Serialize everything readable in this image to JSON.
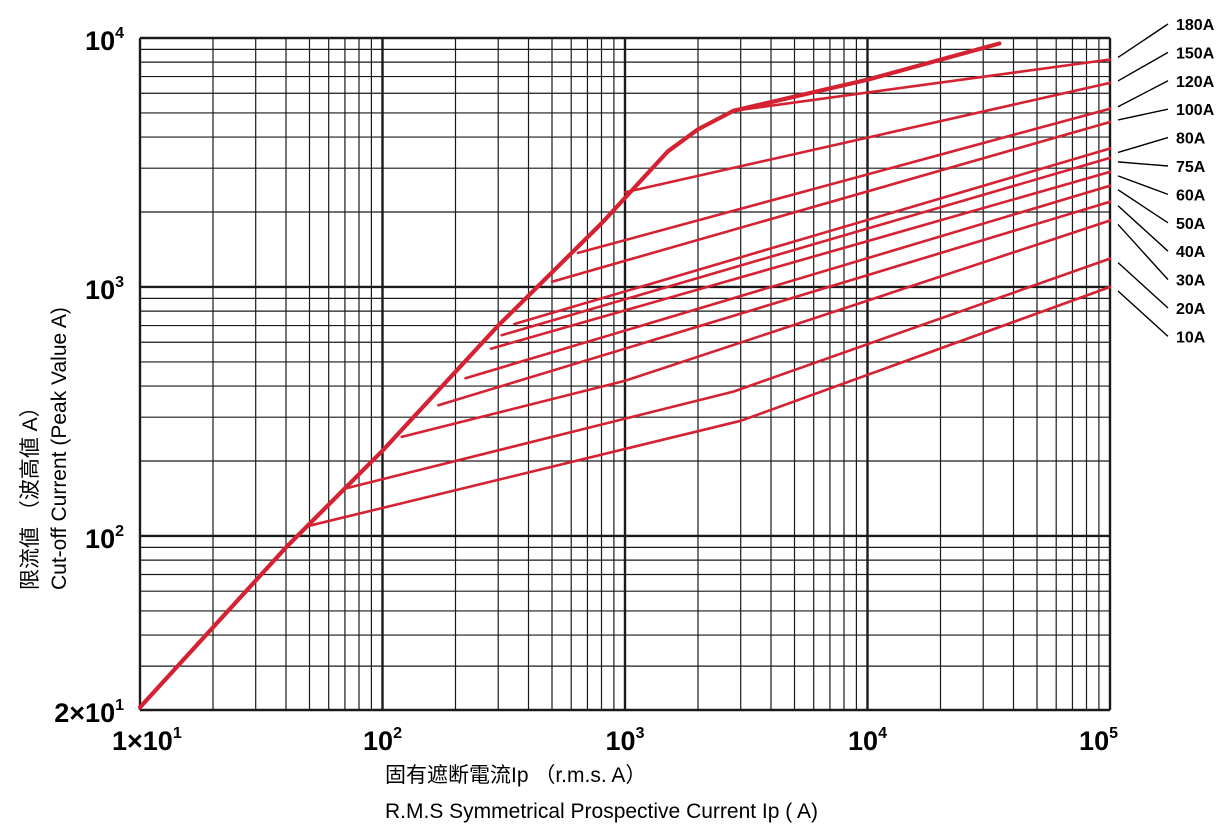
{
  "chart_data": {
    "type": "line",
    "title": "",
    "xlabel_jp": "固有遮断電流Ip （r.m.s.  A）",
    "xlabel_en": "R.M.S Symmetrical Prospective Current Ip ( A)",
    "ylabel_jp": "限流値 （波高値  A）",
    "ylabel_en": "Cut-off Current (Peak Value  A)",
    "x_scale": "log",
    "y_scale": "log",
    "xlim": [
      10,
      100000
    ],
    "ylim": [
      20,
      10000
    ],
    "grid": true,
    "x_ticks": [
      {
        "base": "1×10",
        "exp": "1"
      },
      {
        "base": "10",
        "exp": "2"
      },
      {
        "base": "10",
        "exp": "3"
      },
      {
        "base": "10",
        "exp": "4"
      },
      {
        "base": "10",
        "exp": "5"
      }
    ],
    "y_ticks": [
      {
        "base": "2×10",
        "exp": "1"
      },
      {
        "base": "10",
        "exp": "2"
      },
      {
        "base": "10",
        "exp": "3"
      },
      {
        "base": "10",
        "exp": "4"
      }
    ],
    "colors": {
      "line": "#d42232",
      "grid": "#1a1a1a",
      "leader": "#000000"
    },
    "envelope": {
      "x": [
        10,
        40,
        100,
        300,
        800,
        1500,
        2000,
        2800,
        10000,
        35000
      ],
      "y": [
        20.5,
        90,
        220,
        700,
        1800,
        3500,
        4300,
        5100,
        6800,
        9500
      ]
    },
    "series": [
      {
        "name": "10A",
        "x": [
          50,
          3000,
          100000
        ],
        "y": [
          110,
          290,
          1000
        ]
      },
      {
        "name": "20A",
        "x": [
          70,
          2800,
          100000
        ],
        "y": [
          155,
          380,
          1300
        ]
      },
      {
        "name": "30A",
        "x": [
          120,
          1000,
          100000
        ],
        "y": [
          250,
          420,
          1850
        ]
      },
      {
        "name": "40A",
        "x": [
          170,
          100000
        ],
        "y": [
          335,
          2200
        ]
      },
      {
        "name": "50A",
        "x": [
          220,
          100000
        ],
        "y": [
          430,
          2550
        ]
      },
      {
        "name": "60A",
        "x": [
          280,
          100000
        ],
        "y": [
          565,
          2900
        ]
      },
      {
        "name": "75A",
        "x": [
          310,
          100000
        ],
        "y": [
          640,
          3300
        ]
      },
      {
        "name": "80A",
        "x": [
          350,
          100000
        ],
        "y": [
          710,
          3600
        ]
      },
      {
        "name": "100A",
        "x": [
          500,
          100000
        ],
        "y": [
          1050,
          4600
        ]
      },
      {
        "name": "120A",
        "x": [
          640,
          100000
        ],
        "y": [
          1370,
          5200
        ]
      },
      {
        "name": "150A",
        "x": [
          1000,
          100000
        ],
        "y": [
          2400,
          6600
        ]
      },
      {
        "name": "180A",
        "x": [
          2800,
          100000
        ],
        "y": [
          5100,
          8200
        ]
      }
    ]
  }
}
